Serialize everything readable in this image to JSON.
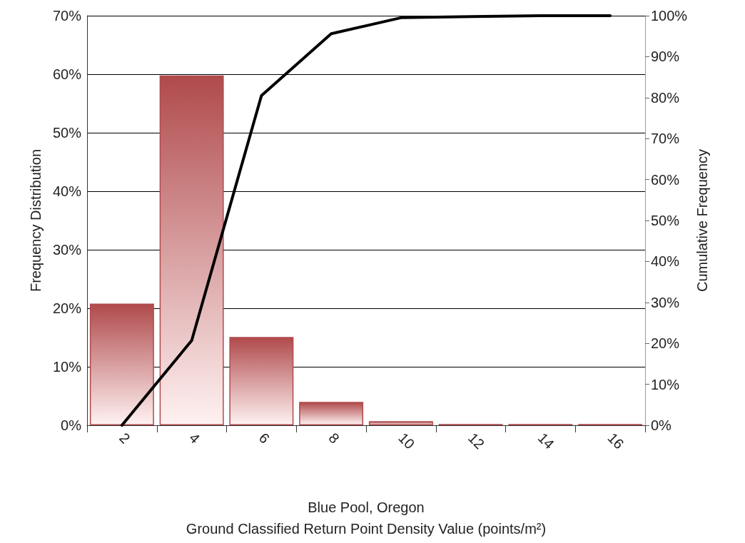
{
  "chart_data": {
    "type": "bar",
    "xlabel": "Blue Pool, Oregon\nGround Classified Return Point Density Value (points/m²)",
    "ylabel": "Frequency Distribution",
    "y2label": "Cumulative Frequency",
    "categories": [
      "2",
      "4",
      "6",
      "8",
      "10",
      "12",
      "14",
      "16"
    ],
    "series": [
      {
        "color": "#b04a4c",
        "values": [
          20.8,
          59.8,
          15.1,
          4.0,
          0.7,
          0.2,
          0.2,
          0.2
        ]
      },
      {
        "type": "line",
        "axis": "y2",
        "color": "#000000",
        "values": [
          0,
          20.7,
          80.5,
          95.6,
          99.5,
          99.8,
          100,
          100
        ]
      }
    ],
    "ylim": [
      0,
      70
    ],
    "yticks": [
      {
        "value": 0,
        "label": "0%"
      },
      {
        "value": 10,
        "label": "10%"
      },
      {
        "value": 20,
        "label": "20%"
      },
      {
        "value": 30,
        "label": "30%"
      },
      {
        "value": 40,
        "label": "40%"
      },
      {
        "value": 50,
        "label": "50%"
      },
      {
        "value": 60,
        "label": "60%"
      },
      {
        "value": 70,
        "label": "70%"
      }
    ],
    "y2lim": [
      0,
      100
    ],
    "y2ticks": [
      {
        "value": 0,
        "label": "0%"
      },
      {
        "value": 10,
        "label": "10%"
      },
      {
        "value": 20,
        "label": "20%"
      },
      {
        "value": 30,
        "label": "30%"
      },
      {
        "value": 40,
        "label": "40%"
      },
      {
        "value": 50,
        "label": "50%"
      },
      {
        "value": 60,
        "label": "60%"
      },
      {
        "value": 70,
        "label": "70%"
      },
      {
        "value": 80,
        "label": "80%"
      },
      {
        "value": 90,
        "label": "90%"
      },
      {
        "value": 100,
        "label": "100%"
      }
    ],
    "grid": "y",
    "marker": "none",
    "line_style": "solid"
  }
}
